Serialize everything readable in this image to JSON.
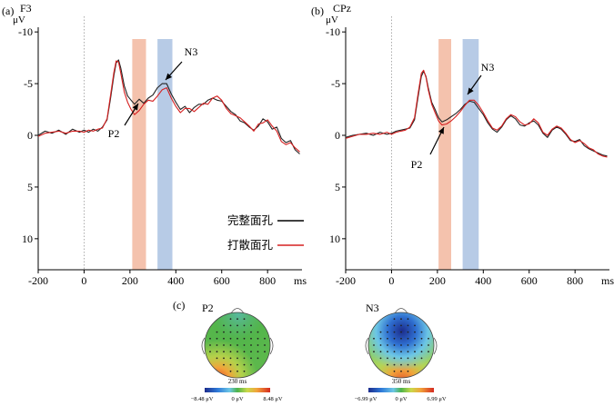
{
  "chart_data": [
    {
      "type": "line",
      "panel_label": "(a)",
      "channel": "F3",
      "yunit": "μV",
      "xunit": "ms",
      "xlim": [
        -200,
        950
      ],
      "ylim": [
        -12,
        13
      ],
      "y_inverted": true,
      "xticks": [
        -200,
        0,
        200,
        400,
        600,
        800
      ],
      "yticks": [
        -10,
        -5,
        0,
        5,
        10
      ],
      "shaded_windows": [
        {
          "name": "P2 window",
          "range": [
            210,
            270
          ],
          "color": "#f4c2ad"
        },
        {
          "name": "N3 window",
          "range": [
            320,
            385
          ],
          "color": "#b7cbe6"
        }
      ],
      "annotations": [
        {
          "text": "P2",
          "x": 245,
          "y": -3.1
        },
        {
          "text": "N3",
          "x": 350,
          "y": -5.0
        }
      ],
      "series": [
        {
          "name": "完整面孔",
          "color": "#000000",
          "x": [
            -200,
            -170,
            -140,
            -110,
            -80,
            -50,
            -20,
            0,
            20,
            40,
            60,
            80,
            100,
            115,
            130,
            140,
            150,
            160,
            175,
            190,
            205,
            220,
            240,
            260,
            280,
            300,
            320,
            340,
            360,
            380,
            400,
            420,
            440,
            460,
            480,
            500,
            520,
            540,
            560,
            580,
            600,
            620,
            640,
            660,
            680,
            700,
            720,
            740,
            760,
            780,
            800,
            820,
            840,
            860,
            880,
            900,
            920,
            940
          ],
          "y": [
            0.0,
            -0.4,
            -0.2,
            -0.5,
            -0.1,
            -0.6,
            -0.3,
            -0.5,
            -0.3,
            -0.6,
            -0.4,
            -0.8,
            -1.5,
            -3.5,
            -5.8,
            -7.0,
            -7.3,
            -6.5,
            -4.8,
            -3.8,
            -3.4,
            -3.0,
            -3.5,
            -3.1,
            -3.6,
            -3.9,
            -4.6,
            -5.0,
            -5.0,
            -4.0,
            -3.2,
            -2.5,
            -2.8,
            -2.2,
            -2.7,
            -3.0,
            -3.0,
            -3.4,
            -3.6,
            -3.4,
            -3.3,
            -2.8,
            -2.3,
            -2.0,
            -1.4,
            -1.2,
            -0.8,
            -0.5,
            -0.9,
            -1.6,
            -1.3,
            -0.6,
            -0.8,
            0.3,
            0.7,
            0.5,
            1.4,
            1.8
          ]
        },
        {
          "name": "打散面孔",
          "color": "#d62020",
          "x": [
            -200,
            -170,
            -140,
            -110,
            -80,
            -50,
            -20,
            0,
            20,
            40,
            60,
            80,
            100,
            115,
            130,
            140,
            150,
            160,
            175,
            190,
            205,
            220,
            240,
            260,
            280,
            300,
            320,
            340,
            360,
            380,
            400,
            420,
            440,
            460,
            480,
            500,
            520,
            540,
            560,
            580,
            600,
            620,
            640,
            660,
            680,
            700,
            720,
            740,
            760,
            780,
            800,
            820,
            840,
            860,
            880,
            900,
            920,
            940
          ],
          "y": [
            0.1,
            -0.2,
            -0.3,
            -0.4,
            -0.2,
            -0.4,
            -0.4,
            -0.3,
            -0.5,
            -0.4,
            -0.6,
            -0.7,
            -1.6,
            -3.8,
            -6.1,
            -7.2,
            -7.1,
            -6.0,
            -4.2,
            -3.2,
            -2.5,
            -2.0,
            -2.4,
            -3.0,
            -3.4,
            -3.3,
            -3.8,
            -4.4,
            -4.6,
            -3.6,
            -2.8,
            -2.2,
            -2.6,
            -2.6,
            -2.3,
            -2.7,
            -3.1,
            -3.0,
            -3.6,
            -3.8,
            -3.4,
            -2.6,
            -2.1,
            -1.9,
            -1.7,
            -1.3,
            -0.9,
            -0.4,
            -1.1,
            -1.2,
            -1.5,
            -0.9,
            -0.4,
            0.6,
            0.9,
            0.7,
            1.2,
            1.6
          ]
        }
      ]
    },
    {
      "type": "line",
      "panel_label": "(b)",
      "channel": "CPz",
      "yunit": "μV",
      "xunit": "ms",
      "xlim": [
        -200,
        950
      ],
      "ylim": [
        -12,
        13
      ],
      "y_inverted": true,
      "xticks": [
        -200,
        0,
        200,
        400,
        600,
        800
      ],
      "yticks": [
        -10,
        -5,
        0,
        5,
        10
      ],
      "shaded_windows": [
        {
          "name": "P2 window",
          "range": [
            205,
            260
          ],
          "color": "#f4c2ad"
        },
        {
          "name": "N3 window",
          "range": [
            310,
            380
          ],
          "color": "#b7cbe6"
        }
      ],
      "annotations": [
        {
          "text": "P2",
          "x": 235,
          "y": -1.0
        },
        {
          "text": "N3",
          "x": 345,
          "y": -3.3
        }
      ],
      "series": [
        {
          "name": "完整面孔",
          "color": "#000000",
          "x": [
            -200,
            -170,
            -140,
            -110,
            -80,
            -50,
            -20,
            0,
            20,
            40,
            60,
            80,
            100,
            115,
            130,
            140,
            150,
            160,
            175,
            190,
            205,
            220,
            240,
            260,
            280,
            300,
            320,
            340,
            360,
            380,
            400,
            420,
            440,
            460,
            480,
            500,
            520,
            540,
            560,
            580,
            600,
            620,
            640,
            660,
            680,
            700,
            720,
            740,
            760,
            780,
            800,
            820,
            840,
            860,
            880,
            900,
            920,
            940
          ],
          "y": [
            0.2,
            0.0,
            -0.1,
            -0.2,
            0.0,
            -0.3,
            -0.1,
            -0.2,
            -0.4,
            -0.5,
            -0.6,
            -0.7,
            -1.5,
            -3.6,
            -5.7,
            -6.2,
            -5.7,
            -4.6,
            -3.2,
            -2.5,
            -1.7,
            -1.3,
            -1.5,
            -1.8,
            -2.1,
            -2.5,
            -3.0,
            -3.3,
            -3.2,
            -2.6,
            -2.0,
            -1.2,
            -0.6,
            -0.3,
            -0.8,
            -1.5,
            -1.9,
            -1.6,
            -1.0,
            -0.9,
            -1.2,
            -1.4,
            -1.0,
            -0.2,
            0.2,
            -0.5,
            -0.8,
            -0.6,
            -0.1,
            0.5,
            0.6,
            0.4,
            1.0,
            1.3,
            1.5,
            1.7,
            1.9,
            2.0
          ]
        },
        {
          "name": "打散面孔",
          "color": "#d62020",
          "x": [
            -200,
            -170,
            -140,
            -110,
            -80,
            -50,
            -20,
            0,
            20,
            40,
            60,
            80,
            100,
            115,
            130,
            140,
            150,
            160,
            175,
            190,
            205,
            220,
            240,
            260,
            280,
            300,
            320,
            340,
            360,
            380,
            400,
            420,
            440,
            460,
            480,
            500,
            520,
            540,
            560,
            580,
            600,
            620,
            640,
            660,
            680,
            700,
            720,
            740,
            760,
            780,
            800,
            820,
            840,
            860,
            880,
            900,
            920,
            940
          ],
          "y": [
            0.3,
            0.1,
            -0.1,
            -0.1,
            -0.2,
            -0.1,
            -0.3,
            -0.1,
            -0.3,
            -0.4,
            -0.5,
            -0.8,
            -1.7,
            -3.9,
            -6.0,
            -6.3,
            -5.6,
            -4.4,
            -3.0,
            -2.2,
            -1.4,
            -1.0,
            -1.1,
            -1.4,
            -1.8,
            -2.3,
            -2.9,
            -3.4,
            -3.4,
            -2.9,
            -2.2,
            -1.4,
            -0.7,
            -0.5,
            -0.9,
            -1.6,
            -2.0,
            -1.8,
            -1.3,
            -1.0,
            -1.1,
            -1.6,
            -1.2,
            -0.3,
            0.0,
            -0.6,
            -0.9,
            -0.7,
            -0.2,
            0.4,
            0.7,
            0.5,
            0.8,
            1.2,
            1.4,
            1.8,
            2.0,
            2.1
          ]
        }
      ]
    }
  ],
  "legend": {
    "items": [
      {
        "label": "完整面孔",
        "color": "#000000"
      },
      {
        "label": "打散面孔",
        "color": "#d62020"
      }
    ]
  },
  "topomaps": {
    "panel_label": "(c)",
    "maps": [
      {
        "title": "P2",
        "time": "230 ms",
        "min_label": "−8.48 μV",
        "mid_label": "0 μV",
        "max_label": "8.48 μV",
        "scheme": "p2"
      },
      {
        "title": "N3",
        "time": "350 ms",
        "min_label": "−6.99 μV",
        "mid_label": "0 μV",
        "max_label": "6.99 μV",
        "scheme": "n3"
      }
    ]
  }
}
